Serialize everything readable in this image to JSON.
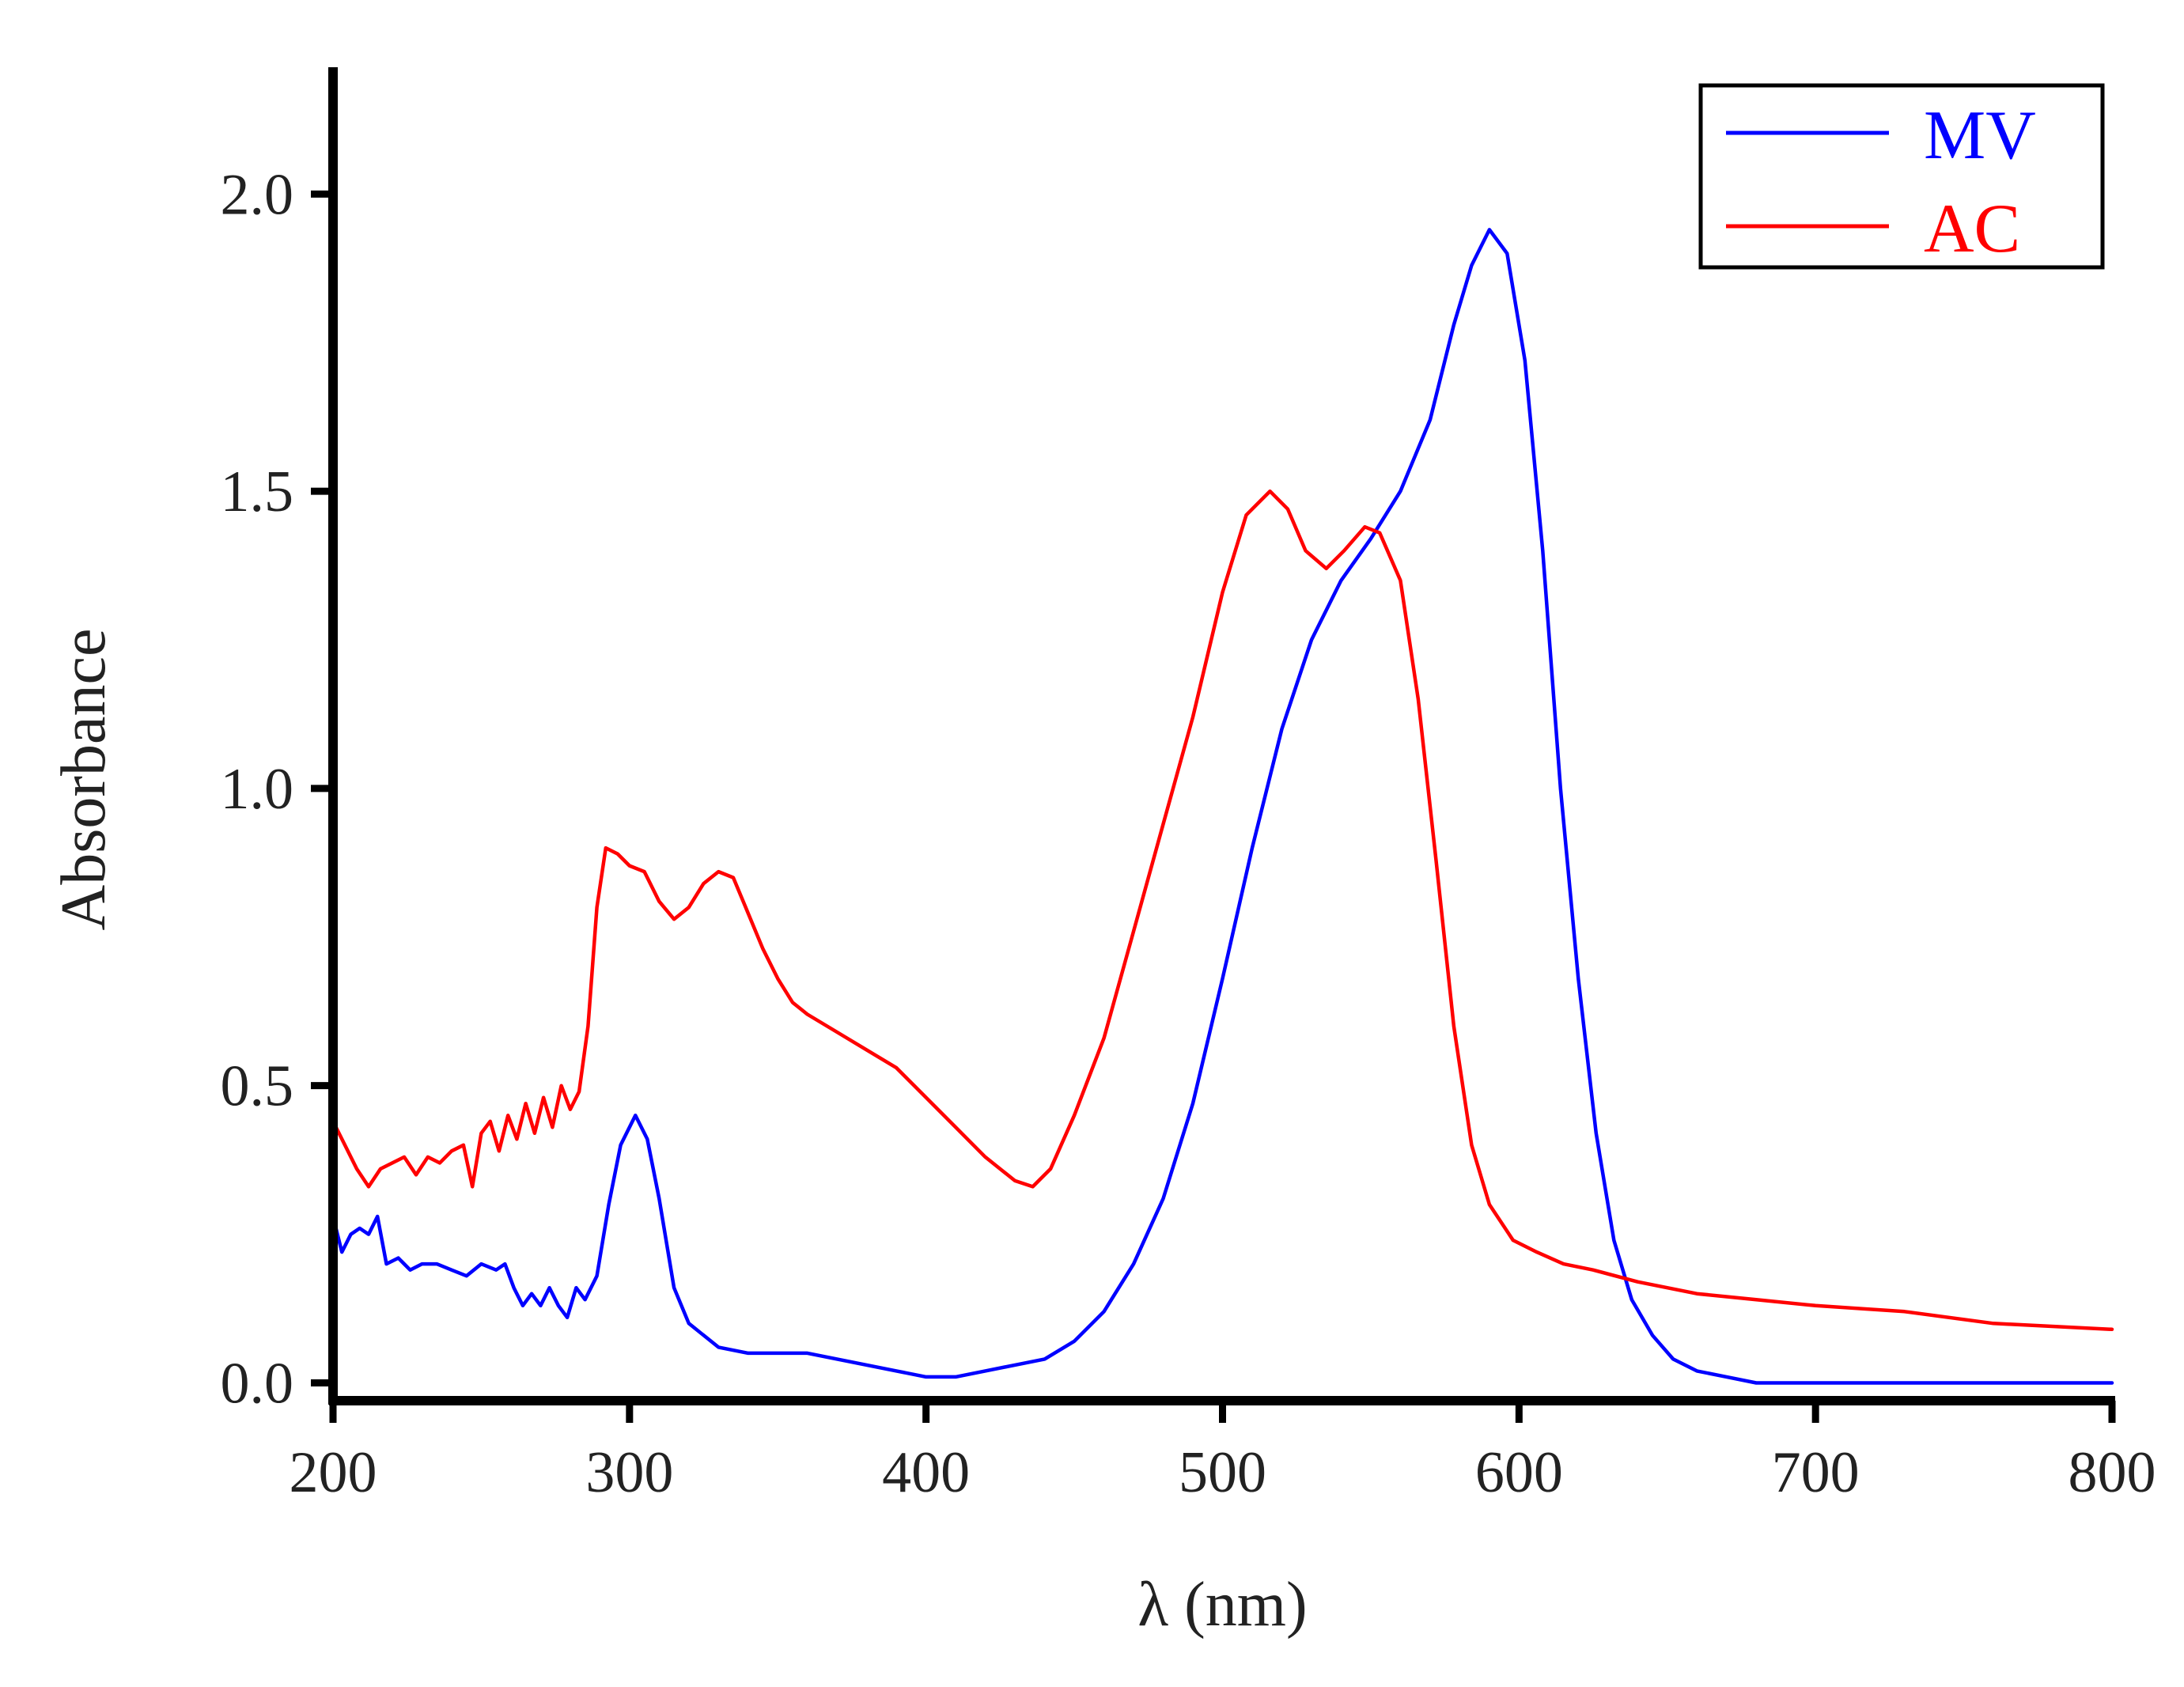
{
  "chart_data": {
    "type": "line",
    "title": "",
    "xlabel": "λ (nm)",
    "ylabel": "Absorbance",
    "xlim": [
      200,
      800
    ],
    "ylim": [
      -0.03,
      2.22
    ],
    "xticks": [
      "200",
      "300",
      "400",
      "500",
      "600",
      "700",
      "800"
    ],
    "yticks": [
      "0.0",
      "0.5",
      "1.0",
      "1.5",
      "2.0"
    ],
    "grid": false,
    "legend_position": "top-right",
    "series": [
      {
        "name": "MV",
        "color": "#0000ff",
        "points": [
          [
            200,
            0.28
          ],
          [
            203,
            0.22
          ],
          [
            206,
            0.25
          ],
          [
            209,
            0.26
          ],
          [
            212,
            0.25
          ],
          [
            215,
            0.28
          ],
          [
            218,
            0.2
          ],
          [
            222,
            0.21
          ],
          [
            226,
            0.19
          ],
          [
            230,
            0.2
          ],
          [
            235,
            0.2
          ],
          [
            240,
            0.19
          ],
          [
            245,
            0.18
          ],
          [
            250,
            0.2
          ],
          [
            255,
            0.19
          ],
          [
            258,
            0.2
          ],
          [
            261,
            0.16
          ],
          [
            264,
            0.13
          ],
          [
            267,
            0.15
          ],
          [
            270,
            0.13
          ],
          [
            273,
            0.16
          ],
          [
            276,
            0.13
          ],
          [
            279,
            0.11
          ],
          [
            282,
            0.16
          ],
          [
            285,
            0.14
          ],
          [
            289,
            0.18
          ],
          [
            293,
            0.3
          ],
          [
            297,
            0.4
          ],
          [
            302,
            0.45
          ],
          [
            306,
            0.41
          ],
          [
            310,
            0.31
          ],
          [
            315,
            0.16
          ],
          [
            320,
            0.1
          ],
          [
            325,
            0.08
          ],
          [
            330,
            0.06
          ],
          [
            340,
            0.05
          ],
          [
            350,
            0.05
          ],
          [
            360,
            0.05
          ],
          [
            370,
            0.04
          ],
          [
            380,
            0.03
          ],
          [
            390,
            0.02
          ],
          [
            400,
            0.01
          ],
          [
            410,
            0.01
          ],
          [
            420,
            0.02
          ],
          [
            430,
            0.03
          ],
          [
            440,
            0.04
          ],
          [
            450,
            0.07
          ],
          [
            460,
            0.12
          ],
          [
            470,
            0.2
          ],
          [
            480,
            0.31
          ],
          [
            490,
            0.47
          ],
          [
            500,
            0.68
          ],
          [
            510,
            0.9
          ],
          [
            520,
            1.1
          ],
          [
            530,
            1.25
          ],
          [
            540,
            1.35
          ],
          [
            550,
            1.42
          ],
          [
            560,
            1.5
          ],
          [
            570,
            1.62
          ],
          [
            578,
            1.78
          ],
          [
            584,
            1.88
          ],
          [
            590,
            1.94
          ],
          [
            596,
            1.9
          ],
          [
            602,
            1.72
          ],
          [
            608,
            1.4
          ],
          [
            614,
            1.0
          ],
          [
            620,
            0.68
          ],
          [
            626,
            0.42
          ],
          [
            632,
            0.24
          ],
          [
            638,
            0.14
          ],
          [
            645,
            0.08
          ],
          [
            652,
            0.04
          ],
          [
            660,
            0.02
          ],
          [
            670,
            0.01
          ],
          [
            680,
            0.0
          ],
          [
            700,
            0.0
          ],
          [
            750,
            0.0
          ],
          [
            800,
            0.0
          ]
        ]
      },
      {
        "name": "AC",
        "color": "#ff0000",
        "points": [
          [
            200,
            0.44
          ],
          [
            204,
            0.4
          ],
          [
            208,
            0.36
          ],
          [
            212,
            0.33
          ],
          [
            216,
            0.36
          ],
          [
            220,
            0.37
          ],
          [
            224,
            0.38
          ],
          [
            228,
            0.35
          ],
          [
            232,
            0.38
          ],
          [
            236,
            0.37
          ],
          [
            240,
            0.39
          ],
          [
            244,
            0.4
          ],
          [
            247,
            0.33
          ],
          [
            250,
            0.42
          ],
          [
            253,
            0.44
          ],
          [
            256,
            0.39
          ],
          [
            259,
            0.45
          ],
          [
            262,
            0.41
          ],
          [
            265,
            0.47
          ],
          [
            268,
            0.42
          ],
          [
            271,
            0.48
          ],
          [
            274,
            0.43
          ],
          [
            277,
            0.5
          ],
          [
            280,
            0.46
          ],
          [
            283,
            0.49
          ],
          [
            286,
            0.6
          ],
          [
            289,
            0.8
          ],
          [
            292,
            0.9
          ],
          [
            296,
            0.89
          ],
          [
            300,
            0.87
          ],
          [
            305,
            0.86
          ],
          [
            310,
            0.81
          ],
          [
            315,
            0.78
          ],
          [
            320,
            0.8
          ],
          [
            325,
            0.84
          ],
          [
            330,
            0.86
          ],
          [
            335,
            0.85
          ],
          [
            340,
            0.79
          ],
          [
            345,
            0.73
          ],
          [
            350,
            0.68
          ],
          [
            355,
            0.64
          ],
          [
            360,
            0.62
          ],
          [
            370,
            0.59
          ],
          [
            380,
            0.56
          ],
          [
            390,
            0.53
          ],
          [
            400,
            0.48
          ],
          [
            410,
            0.43
          ],
          [
            420,
            0.38
          ],
          [
            430,
            0.34
          ],
          [
            436,
            0.33
          ],
          [
            442,
            0.36
          ],
          [
            450,
            0.45
          ],
          [
            460,
            0.58
          ],
          [
            470,
            0.76
          ],
          [
            480,
            0.94
          ],
          [
            490,
            1.12
          ],
          [
            500,
            1.33
          ],
          [
            508,
            1.46
          ],
          [
            516,
            1.5
          ],
          [
            522,
            1.47
          ],
          [
            528,
            1.4
          ],
          [
            535,
            1.37
          ],
          [
            541,
            1.4
          ],
          [
            548,
            1.44
          ],
          [
            553,
            1.43
          ],
          [
            560,
            1.35
          ],
          [
            566,
            1.15
          ],
          [
            572,
            0.88
          ],
          [
            578,
            0.6
          ],
          [
            584,
            0.4
          ],
          [
            590,
            0.3
          ],
          [
            598,
            0.24
          ],
          [
            606,
            0.22
          ],
          [
            615,
            0.2
          ],
          [
            625,
            0.19
          ],
          [
            640,
            0.17
          ],
          [
            660,
            0.15
          ],
          [
            680,
            0.14
          ],
          [
            700,
            0.13
          ],
          [
            730,
            0.12
          ],
          [
            760,
            0.1
          ],
          [
            800,
            0.09
          ]
        ]
      }
    ]
  }
}
